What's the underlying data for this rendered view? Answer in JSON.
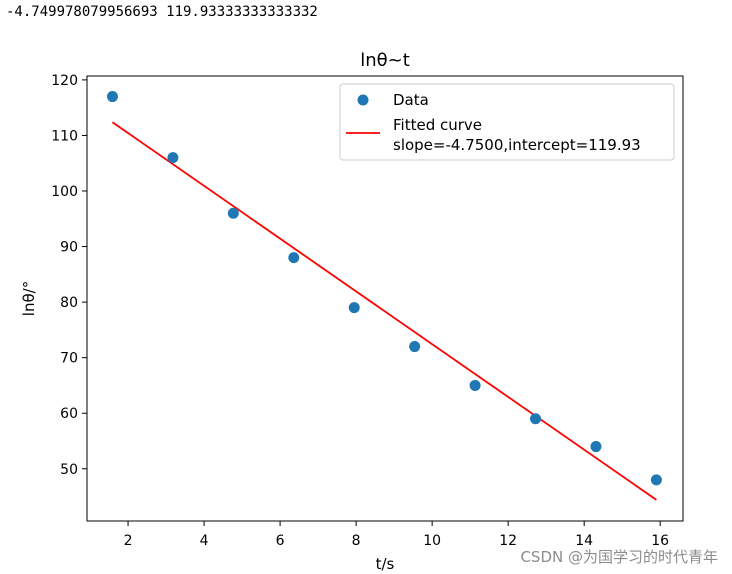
{
  "console_output": "-4.749978079956693 119.93333333333332",
  "watermark": "CSDN @为国学习的时代青年",
  "colors": {
    "scatter": "#1f77b4",
    "fit_line": "#ff0000",
    "axes": "#000000",
    "legend_border": "#cccccc"
  },
  "chart_data": {
    "type": "scatter",
    "title": "lnθ~t",
    "xlabel": "t/s",
    "ylabel": "lnθ/°",
    "xlim": [
      0.92,
      16.6
    ],
    "ylim": [
      40.6,
      120.7
    ],
    "xticks": [
      2,
      4,
      6,
      8,
      10,
      12,
      14,
      16
    ],
    "yticks": [
      50,
      60,
      70,
      80,
      90,
      100,
      110,
      120
    ],
    "grid": false,
    "legend_position": "top-right",
    "series": [
      {
        "name": "Data",
        "kind": "scatter",
        "x": [
          1.59,
          3.18,
          4.77,
          6.36,
          7.95,
          9.54,
          11.13,
          12.72,
          14.31,
          15.9
        ],
        "y": [
          117,
          106,
          96,
          88,
          79,
          72,
          65,
          59,
          54,
          48
        ]
      },
      {
        "name": "Fitted curve\nslope=-4.7500,intercept=119.93",
        "legend_lines": [
          "Fitted curve",
          "slope=-4.7500,intercept=119.93"
        ],
        "kind": "line",
        "slope": -4.75,
        "intercept": 119.93,
        "x": [
          1.59,
          15.9
        ]
      }
    ]
  }
}
